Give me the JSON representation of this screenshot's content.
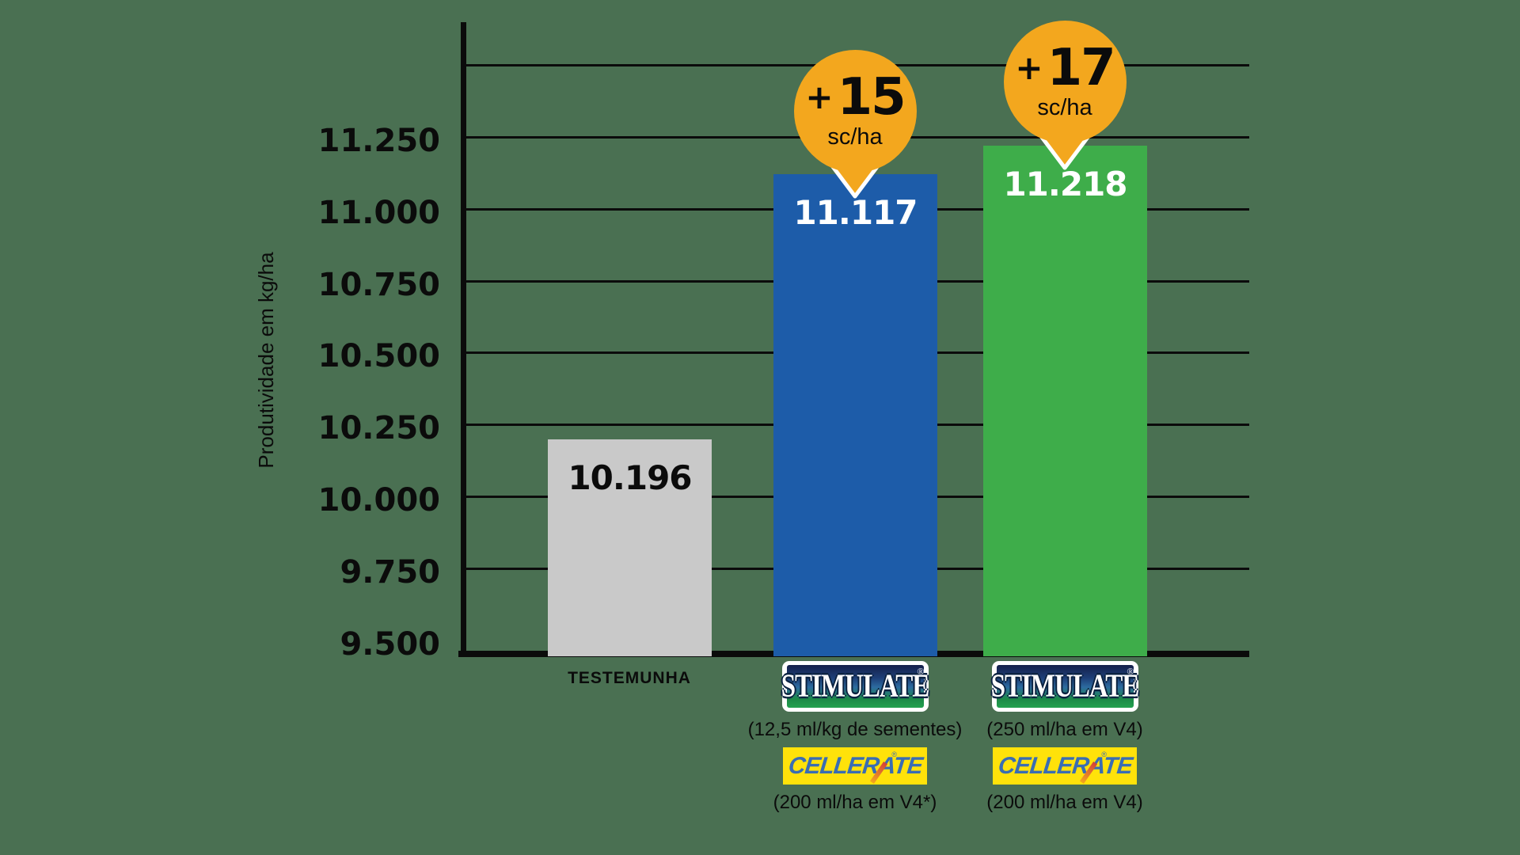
{
  "colors": {
    "background": "#4A7052",
    "line_black": "#0b0b0b",
    "bar_gray": "#C9C9C9",
    "bar_blue": "#1D5CA9",
    "bar_green": "#3EAD4A",
    "badge_orange": "#F3A71E",
    "badge_text": "#0b0b0b",
    "cellerate_yellow": "#FFE20A",
    "cellerate_blue": "#3A6DB3",
    "cellerate_leg_red": "#D2413A",
    "value_white": "#FFFFFF",
    "value_black": "#0b0b0b"
  },
  "chart_data": {
    "type": "bar",
    "title": "",
    "xlabel": "",
    "ylabel": "Produtividade em kg/ha",
    "ylim": [
      9450,
      11550
    ],
    "grid": true,
    "grid_values": [
      9750,
      10000,
      10250,
      10500,
      10750,
      11000,
      11250,
      11500
    ],
    "y_ticks": [
      {
        "value": 9500,
        "label": "9.500"
      },
      {
        "value": 9750,
        "label": "9.750"
      },
      {
        "value": 10000,
        "label": "10.000"
      },
      {
        "value": 10250,
        "label": "10.250"
      },
      {
        "value": 10500,
        "label": "10.500"
      },
      {
        "value": 10750,
        "label": "10.750"
      },
      {
        "value": 11000,
        "label": "11.000"
      },
      {
        "value": 11250,
        "label": "11.250"
      }
    ],
    "categories": [
      "TESTEMUNHA",
      "STIMULATE (12,5 ml/kg de sementes) + CELLERATE (200 ml/ha em V4*)",
      "STIMULATE (250 ml/ha em V4) + CELLERATE (200 ml/ha em V4)"
    ],
    "values": [
      10196,
      11117,
      11218
    ],
    "value_labels": [
      "10.196",
      "11.117",
      "11.218"
    ],
    "bar_color_keys": [
      "bar_gray",
      "bar_blue",
      "bar_green"
    ],
    "value_color_keys": [
      "value_black",
      "value_white",
      "value_white"
    ],
    "badges": [
      null,
      {
        "plus": "+",
        "amount": "15",
        "unit": "sc/ha"
      },
      {
        "plus": "+",
        "amount": "17",
        "unit": "sc/ha"
      }
    ],
    "legend": null
  },
  "footers": [
    {
      "type": "label",
      "label": "TESTEMUNHA"
    },
    {
      "type": "products",
      "items": [
        {
          "brand": "STIMULATE",
          "registered": "®",
          "dose": "(12,5 ml/kg de sementes)"
        },
        {
          "brand": "CELLERATE",
          "registered": "®",
          "dose": "(200 ml/ha em V4*)"
        }
      ]
    },
    {
      "type": "products",
      "items": [
        {
          "brand": "STIMULATE",
          "registered": "®",
          "dose": "(250 ml/ha em V4)"
        },
        {
          "brand": "CELLERATE",
          "registered": "®",
          "dose": "(200 ml/ha em V4)"
        }
      ]
    }
  ]
}
